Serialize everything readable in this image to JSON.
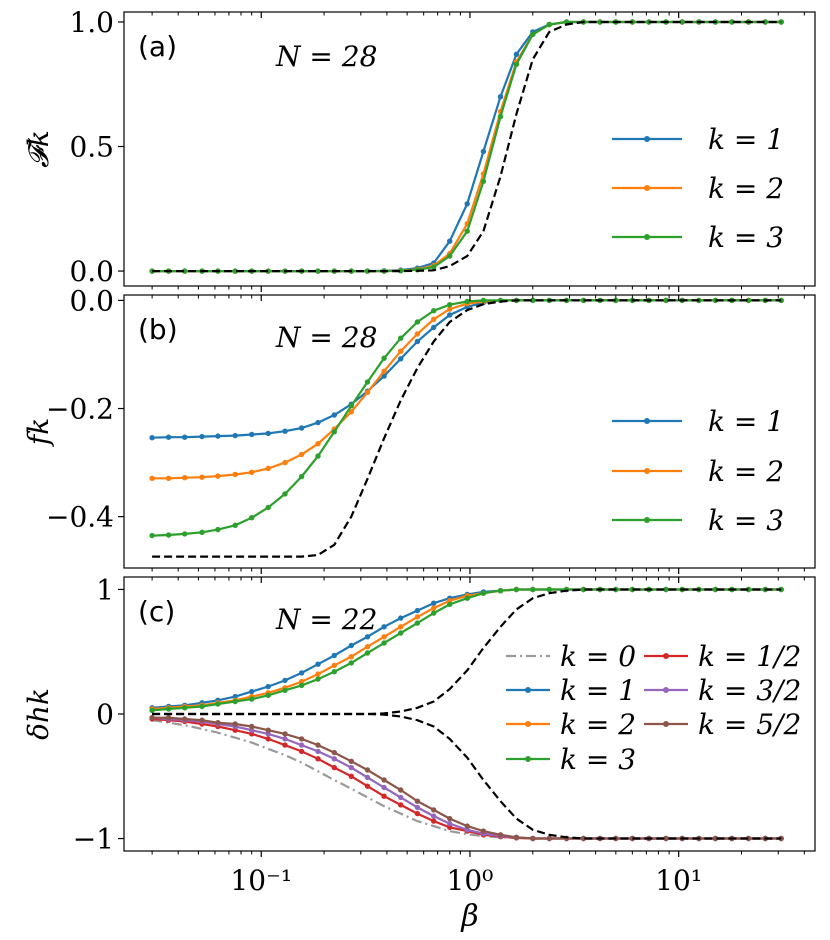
{
  "figure": {
    "xlabel": "β",
    "x_ticks": [
      0.1,
      1,
      10
    ],
    "x_tick_labels": [
      "10⁻¹",
      "10⁰",
      "10¹"
    ],
    "xlim": [
      0.022,
      45
    ],
    "log_x": true,
    "grid": false
  },
  "chart_data": [
    {
      "type": "line",
      "panel_label": "(a)",
      "annotation": "N = 28",
      "ylabel": "𝓕k",
      "ylim": [
        -0.06,
        1.04
      ],
      "y_ticks": [
        0.0,
        0.5,
        1.0
      ],
      "y_tick_labels": [
        "0.0",
        "0.5",
        "1.0"
      ],
      "legend_position": "right",
      "legend_columns": 1,
      "x": [
        0.03,
        0.036,
        0.043,
        0.052,
        0.062,
        0.075,
        0.09,
        0.108,
        0.13,
        0.156,
        0.187,
        0.224,
        0.27,
        0.323,
        0.388,
        0.466,
        0.56,
        0.67,
        0.8,
        0.97,
        1.16,
        1.4,
        1.67,
        2.0,
        2.4,
        2.9,
        3.5,
        4.2,
        5.0,
        6.0,
        7.2,
        8.7,
        10.4,
        12.5,
        15,
        18,
        21.6,
        26,
        31
      ],
      "series": [
        {
          "name": "k = 1",
          "color": "#1f77b4",
          "markers": true,
          "values": [
            0,
            0,
            0,
            0,
            0,
            0,
            0,
            0,
            0,
            0,
            0,
            0,
            0,
            0,
            0.001,
            0.004,
            0.012,
            0.032,
            0.12,
            0.27,
            0.48,
            0.7,
            0.87,
            0.96,
            0.99,
            1,
            1,
            1,
            1,
            1,
            1,
            1,
            1,
            1,
            1,
            1,
            1,
            1,
            1
          ]
        },
        {
          "name": "k = 2",
          "color": "#ff7f0e",
          "markers": true,
          "values": [
            0,
            0,
            0,
            0,
            0,
            0,
            0,
            0,
            0,
            0,
            0,
            0,
            0,
            0,
            0,
            0.002,
            0.007,
            0.022,
            0.07,
            0.19,
            0.39,
            0.64,
            0.84,
            0.95,
            0.99,
            1,
            1,
            1,
            1,
            1,
            1,
            1,
            1,
            1,
            1,
            1,
            1,
            1,
            1
          ]
        },
        {
          "name": "k = 3",
          "color": "#2ca02c",
          "markers": true,
          "values": [
            0,
            0,
            0,
            0,
            0,
            0,
            0,
            0,
            0,
            0,
            0,
            0,
            0,
            0,
            0,
            0.001,
            0.005,
            0.016,
            0.06,
            0.16,
            0.36,
            0.62,
            0.83,
            0.95,
            0.99,
            1,
            1,
            1,
            1,
            1,
            1,
            1,
            1,
            1,
            1,
            1,
            1,
            1,
            1
          ]
        },
        {
          "name": "",
          "color": "#000000",
          "dashed": true,
          "values": [
            0,
            0,
            0,
            0,
            0,
            0,
            0,
            0,
            0,
            0,
            0,
            0,
            0,
            0,
            0,
            0,
            0.001,
            0.003,
            0.02,
            0.06,
            0.16,
            0.38,
            0.63,
            0.85,
            0.96,
            0.99,
            1,
            1,
            1,
            1,
            1,
            1,
            1,
            1,
            1,
            1,
            1,
            1,
            1
          ]
        }
      ]
    },
    {
      "type": "line",
      "panel_label": "(b)",
      "annotation": "N = 28",
      "ylabel": "fk",
      "ylim": [
        -0.495,
        0.01
      ],
      "y_ticks": [
        0.0,
        -0.2,
        -0.4
      ],
      "y_tick_labels": [
        "0.0",
        "−0.2",
        "−0.4"
      ],
      "legend_position": "right",
      "legend_columns": 1,
      "x": [
        0.03,
        0.036,
        0.043,
        0.052,
        0.062,
        0.075,
        0.09,
        0.108,
        0.13,
        0.156,
        0.187,
        0.224,
        0.27,
        0.323,
        0.388,
        0.466,
        0.56,
        0.67,
        0.8,
        0.97,
        1.16,
        1.4,
        1.67,
        2.0,
        2.4,
        2.9,
        3.5,
        4.2,
        5.0,
        6.0,
        7.2,
        8.7,
        10.4,
        12.5,
        15,
        18,
        21.6,
        26,
        31
      ],
      "series": [
        {
          "name": "k = 1",
          "color": "#1f77b4",
          "markers": true,
          "values": [
            -0.254,
            -0.253,
            -0.253,
            -0.252,
            -0.251,
            -0.25,
            -0.248,
            -0.246,
            -0.242,
            -0.236,
            -0.226,
            -0.212,
            -0.192,
            -0.168,
            -0.14,
            -0.108,
            -0.076,
            -0.05,
            -0.027,
            -0.012,
            -0.004,
            0,
            0,
            0,
            0,
            0,
            0,
            0,
            0,
            0,
            0,
            0,
            0,
            0,
            0,
            0,
            0,
            0,
            0
          ]
        },
        {
          "name": "k = 2",
          "color": "#ff7f0e",
          "markers": true,
          "values": [
            -0.329,
            -0.329,
            -0.328,
            -0.327,
            -0.325,
            -0.322,
            -0.318,
            -0.311,
            -0.3,
            -0.285,
            -0.265,
            -0.238,
            -0.206,
            -0.17,
            -0.131,
            -0.094,
            -0.062,
            -0.035,
            -0.016,
            -0.006,
            -0.002,
            0,
            0,
            0,
            0,
            0,
            0,
            0,
            0,
            0,
            0,
            0,
            0,
            0,
            0,
            0,
            0,
            0,
            0
          ]
        },
        {
          "name": "k = 3",
          "color": "#2ca02c",
          "markers": true,
          "values": [
            -0.435,
            -0.434,
            -0.432,
            -0.429,
            -0.424,
            -0.416,
            -0.402,
            -0.383,
            -0.358,
            -0.326,
            -0.288,
            -0.243,
            -0.195,
            -0.151,
            -0.107,
            -0.07,
            -0.04,
            -0.019,
            -0.008,
            -0.002,
            0,
            0,
            0,
            0,
            0,
            0,
            0,
            0,
            0,
            0,
            0,
            0,
            0,
            0,
            0,
            0,
            0,
            0,
            0
          ]
        },
        {
          "name": "",
          "color": "#000000",
          "dashed": true,
          "values": [
            -0.474,
            -0.474,
            -0.474,
            -0.474,
            -0.474,
            -0.474,
            -0.474,
            -0.474,
            -0.474,
            -0.474,
            -0.471,
            -0.452,
            -0.4,
            -0.33,
            -0.255,
            -0.185,
            -0.125,
            -0.076,
            -0.04,
            -0.018,
            -0.007,
            -0.002,
            0,
            0,
            0,
            0,
            0,
            0,
            0,
            0,
            0,
            0,
            0,
            0,
            0,
            0,
            0,
            0,
            0
          ]
        }
      ]
    },
    {
      "type": "line",
      "panel_label": "(c)",
      "annotation": "N = 22",
      "ylabel": "δhk",
      "ylim": [
        -1.1,
        1.1
      ],
      "y_ticks": [
        1,
        0,
        -1
      ],
      "y_tick_labels": [
        "1",
        "0",
        "−1"
      ],
      "legend_position": "right",
      "legend_columns": 2,
      "x": [
        0.03,
        0.036,
        0.043,
        0.052,
        0.062,
        0.075,
        0.09,
        0.108,
        0.13,
        0.156,
        0.187,
        0.224,
        0.27,
        0.323,
        0.388,
        0.466,
        0.56,
        0.67,
        0.8,
        0.97,
        1.16,
        1.4,
        1.67,
        2.0,
        2.4,
        2.9,
        3.5,
        4.2,
        5.0,
        6.0,
        7.2,
        8.7,
        10.4,
        12.5,
        15,
        18,
        21.6,
        26,
        31
      ],
      "series": [
        {
          "name": "k = 0",
          "color": "#999999",
          "dashdot": true,
          "values": [
            -0.05,
            -0.07,
            -0.09,
            -0.12,
            -0.15,
            -0.19,
            -0.23,
            -0.28,
            -0.33,
            -0.39,
            -0.46,
            -0.53,
            -0.6,
            -0.67,
            -0.74,
            -0.8,
            -0.86,
            -0.9,
            -0.94,
            -0.965,
            -0.98,
            -0.99,
            -0.995,
            -1,
            -1,
            -1,
            -1,
            -1,
            -1,
            -1,
            -1,
            -1,
            -1,
            -1,
            -1,
            -1,
            -1,
            -1,
            -1
          ]
        },
        {
          "name": "k = 1",
          "color": "#1f77b4",
          "markers": true,
          "values": [
            0.05,
            0.06,
            0.07,
            0.09,
            0.11,
            0.14,
            0.18,
            0.22,
            0.27,
            0.33,
            0.4,
            0.47,
            0.55,
            0.62,
            0.7,
            0.77,
            0.83,
            0.89,
            0.93,
            0.96,
            0.98,
            0.99,
            1,
            1,
            1,
            1,
            1,
            1,
            1,
            1,
            1,
            1,
            1,
            1,
            1,
            1,
            1,
            1,
            1
          ]
        },
        {
          "name": "k = 2",
          "color": "#ff7f0e",
          "markers": true,
          "values": [
            0.04,
            0.05,
            0.06,
            0.07,
            0.09,
            0.11,
            0.14,
            0.17,
            0.21,
            0.26,
            0.32,
            0.39,
            0.46,
            0.54,
            0.62,
            0.7,
            0.78,
            0.85,
            0.91,
            0.95,
            0.97,
            0.99,
            1,
            1,
            1,
            1,
            1,
            1,
            1,
            1,
            1,
            1,
            1,
            1,
            1,
            1,
            1,
            1,
            1
          ]
        },
        {
          "name": "k = 3",
          "color": "#2ca02c",
          "markers": true,
          "values": [
            0.03,
            0.04,
            0.05,
            0.06,
            0.08,
            0.1,
            0.12,
            0.15,
            0.19,
            0.23,
            0.28,
            0.34,
            0.41,
            0.49,
            0.57,
            0.65,
            0.73,
            0.81,
            0.88,
            0.93,
            0.97,
            0.99,
            1,
            1,
            1,
            1,
            1,
            1,
            1,
            1,
            1,
            1,
            1,
            1,
            1,
            1,
            1,
            1,
            1
          ]
        },
        {
          "name": "k = 1/2",
          "color": "#d62728",
          "markers": true,
          "values": [
            -0.04,
            -0.05,
            -0.06,
            -0.08,
            -0.1,
            -0.13,
            -0.16,
            -0.2,
            -0.25,
            -0.3,
            -0.36,
            -0.43,
            -0.5,
            -0.58,
            -0.66,
            -0.73,
            -0.8,
            -0.86,
            -0.91,
            -0.94,
            -0.97,
            -0.985,
            -0.995,
            -1,
            -1,
            -1,
            -1,
            -1,
            -1,
            -1,
            -1,
            -1,
            -1,
            -1,
            -1,
            -1,
            -1,
            -1,
            -1
          ]
        },
        {
          "name": "k = 3/2",
          "color": "#9467bd",
          "markers": true,
          "values": [
            -0.03,
            -0.04,
            -0.05,
            -0.06,
            -0.08,
            -0.1,
            -0.13,
            -0.16,
            -0.2,
            -0.25,
            -0.3,
            -0.36,
            -0.43,
            -0.51,
            -0.59,
            -0.67,
            -0.75,
            -0.82,
            -0.88,
            -0.93,
            -0.96,
            -0.98,
            -0.99,
            -1,
            -1,
            -1,
            -1,
            -1,
            -1,
            -1,
            -1,
            -1,
            -1,
            -1,
            -1,
            -1,
            -1,
            -1,
            -1
          ]
        },
        {
          "name": "k = 5/2",
          "color": "#8c564b",
          "markers": true,
          "values": [
            -0.03,
            -0.03,
            -0.04,
            -0.05,
            -0.07,
            -0.08,
            -0.1,
            -0.13,
            -0.16,
            -0.2,
            -0.25,
            -0.31,
            -0.38,
            -0.45,
            -0.53,
            -0.61,
            -0.7,
            -0.77,
            -0.84,
            -0.9,
            -0.94,
            -0.97,
            -0.99,
            -1,
            -1,
            -1,
            -1,
            -1,
            -1,
            -1,
            -1,
            -1,
            -1,
            -1,
            -1,
            -1,
            -1,
            -1,
            -1
          ]
        },
        {
          "name": "",
          "color": "#000000",
          "dashed": true,
          "values": [
            0,
            0,
            0,
            0,
            0,
            0,
            0,
            0,
            0,
            0,
            0,
            0,
            0,
            0,
            0.005,
            0.02,
            0.05,
            0.1,
            0.2,
            0.35,
            0.53,
            0.7,
            0.84,
            0.93,
            0.97,
            0.99,
            1,
            1,
            1,
            1,
            1,
            1,
            1,
            1,
            1,
            1,
            1,
            1,
            1
          ]
        },
        {
          "name": "",
          "color": "#000000",
          "dashed": true,
          "values": [
            0,
            0,
            0,
            0,
            0,
            0,
            0,
            0,
            0,
            0,
            0,
            0,
            0,
            0,
            -0.005,
            -0.02,
            -0.05,
            -0.1,
            -0.2,
            -0.35,
            -0.53,
            -0.7,
            -0.84,
            -0.93,
            -0.97,
            -0.99,
            -1,
            -1,
            -1,
            -1,
            -1,
            -1,
            -1,
            -1,
            -1,
            -1,
            -1,
            -1,
            -1
          ]
        }
      ]
    }
  ]
}
